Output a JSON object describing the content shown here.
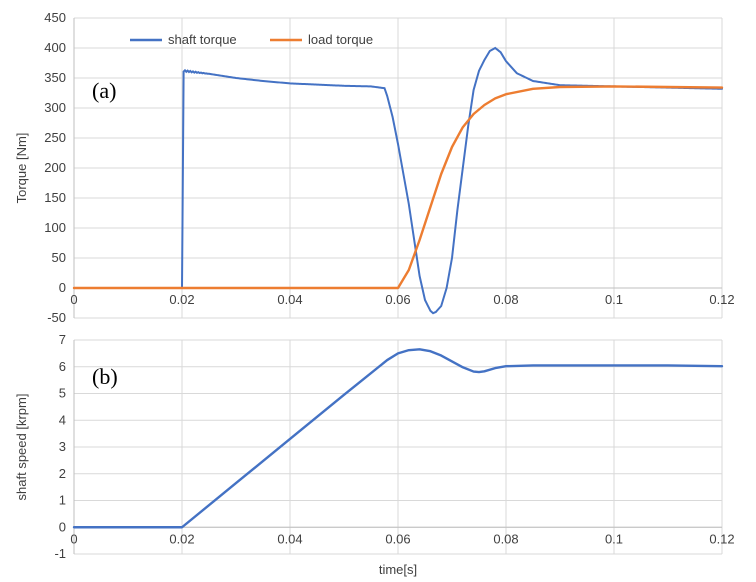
{
  "chart_data": [
    {
      "type": "line",
      "panel_label": "(a)",
      "ylabel": "Torque [Nm]",
      "xlim": [
        0,
        0.12
      ],
      "ylim": [
        -50,
        450
      ],
      "x_ticks": [
        0,
        0.02,
        0.04,
        0.06,
        0.08,
        0.1,
        0.12
      ],
      "x_tick_labels": [
        "0",
        "0.02",
        "0.04",
        "0.06",
        "0.08",
        "0.1",
        "0.12"
      ],
      "y_ticks": [
        -50,
        0,
        50,
        100,
        150,
        200,
        250,
        300,
        350,
        400,
        450
      ],
      "y_tick_labels": [
        "-50",
        "0",
        "50",
        "100",
        "150",
        "200",
        "250",
        "300",
        "350",
        "400",
        "450"
      ],
      "grid": true,
      "legend": "top-left",
      "series": [
        {
          "name": "shaft torque",
          "color": "#4472C4",
          "x": [
            0,
            0.0199,
            0.02,
            0.0203,
            0.025,
            0.03,
            0.035,
            0.04,
            0.045,
            0.05,
            0.055,
            0.0575,
            0.058,
            0.059,
            0.06,
            0.061,
            0.062,
            0.063,
            0.064,
            0.065,
            0.066,
            0.0665,
            0.067,
            0.068,
            0.069,
            0.07,
            0.071,
            0.072,
            0.073,
            0.074,
            0.075,
            0.076,
            0.077,
            0.078,
            0.079,
            0.08,
            0.082,
            0.085,
            0.09,
            0.1,
            0.11,
            0.12
          ],
          "y": [
            0,
            0,
            0,
            362,
            357,
            350,
            345,
            341,
            339,
            337,
            336,
            333,
            320,
            285,
            240,
            190,
            140,
            80,
            20,
            -20,
            -38,
            -42,
            -40,
            -30,
            0,
            50,
            130,
            200,
            270,
            330,
            362,
            380,
            395,
            400,
            393,
            378,
            358,
            345,
            338,
            336,
            334,
            332
          ],
          "ripple": [
            0,
            0,
            0,
            2,
            3,
            4,
            4,
            4,
            4,
            4,
            4,
            6,
            6,
            6,
            6,
            6,
            6,
            6,
            6,
            5,
            5,
            4,
            4,
            4,
            4,
            5,
            6,
            6,
            6,
            6,
            6,
            8,
            10,
            12,
            12,
            12,
            12,
            11,
            11,
            11,
            11,
            11
          ]
        },
        {
          "name": "load torque",
          "color": "#ED7D31",
          "x": [
            0,
            0.06,
            0.062,
            0.064,
            0.066,
            0.068,
            0.07,
            0.072,
            0.074,
            0.076,
            0.078,
            0.08,
            0.085,
            0.09,
            0.1,
            0.11,
            0.12
          ],
          "y": [
            0,
            0,
            30,
            80,
            135,
            190,
            235,
            268,
            290,
            305,
            316,
            323,
            332,
            335,
            336,
            335,
            334
          ]
        }
      ]
    },
    {
      "type": "line",
      "panel_label": "(b)",
      "xlabel": "time[s]",
      "ylabel": "shaft speed [krpm]",
      "xlim": [
        0,
        0.12
      ],
      "ylim": [
        -1,
        7
      ],
      "x_ticks": [
        0,
        0.02,
        0.04,
        0.06,
        0.08,
        0.1,
        0.12
      ],
      "x_tick_labels": [
        "0",
        "0.02",
        "0.04",
        "0.06",
        "0.08",
        "0.1",
        "0.12"
      ],
      "y_ticks": [
        -1,
        0,
        1,
        2,
        3,
        4,
        5,
        6,
        7
      ],
      "y_tick_labels": [
        "-1",
        "0",
        "1",
        "2",
        "3",
        "4",
        "5",
        "6",
        "7"
      ],
      "grid": true,
      "series": [
        {
          "name": "",
          "color": "#4472C4",
          "x": [
            0,
            0.02,
            0.03,
            0.04,
            0.05,
            0.058,
            0.06,
            0.062,
            0.064,
            0.066,
            0.068,
            0.07,
            0.072,
            0.074,
            0.075,
            0.076,
            0.078,
            0.08,
            0.085,
            0.09,
            0.1,
            0.11,
            0.12
          ],
          "y": [
            0,
            0,
            1.65,
            3.3,
            4.95,
            6.25,
            6.5,
            6.62,
            6.65,
            6.58,
            6.42,
            6.2,
            5.98,
            5.82,
            5.8,
            5.83,
            5.95,
            6.02,
            6.05,
            6.05,
            6.05,
            6.05,
            6.02
          ]
        }
      ]
    }
  ]
}
